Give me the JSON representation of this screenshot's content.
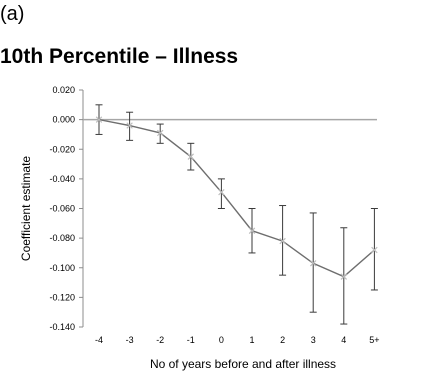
{
  "panel_label": "(a)",
  "chart_data": {
    "type": "line",
    "title": "10th Percentile – Illness",
    "xlabel": "No of years before and after illness",
    "ylabel": "Coefficient estimate",
    "categories": [
      "-4",
      "-3",
      "-2",
      "-1",
      "0",
      "1",
      "2",
      "3",
      "4",
      "5+"
    ],
    "y_ticks": [
      "0.020",
      "0.000",
      "-0.020",
      "-0.040",
      "-0.060",
      "-0.080",
      "-0.100",
      "-0.120",
      "-0.140"
    ],
    "ylim": [
      -0.14,
      0.02
    ],
    "grid": false,
    "reference_line_y": 0,
    "series": [
      {
        "values": [
          0.0,
          -0.004,
          -0.009,
          -0.025,
          -0.049,
          -0.075,
          -0.082,
          -0.097,
          -0.106,
          -0.088
        ],
        "lower": [
          -0.01,
          -0.014,
          -0.016,
          -0.034,
          -0.06,
          -0.09,
          -0.105,
          -0.13,
          -0.138,
          -0.115
        ],
        "upper": [
          0.01,
          0.005,
          -0.003,
          -0.016,
          -0.04,
          -0.06,
          -0.058,
          -0.063,
          -0.073,
          -0.06
        ],
        "color": "#6e6e6e",
        "marker": "x"
      }
    ],
    "colors": {
      "line": "#6e6e6e",
      "zero_line": "#a6a6a6",
      "axis": "#8c8c8c",
      "error_bar": "#3a3a3a"
    }
  }
}
